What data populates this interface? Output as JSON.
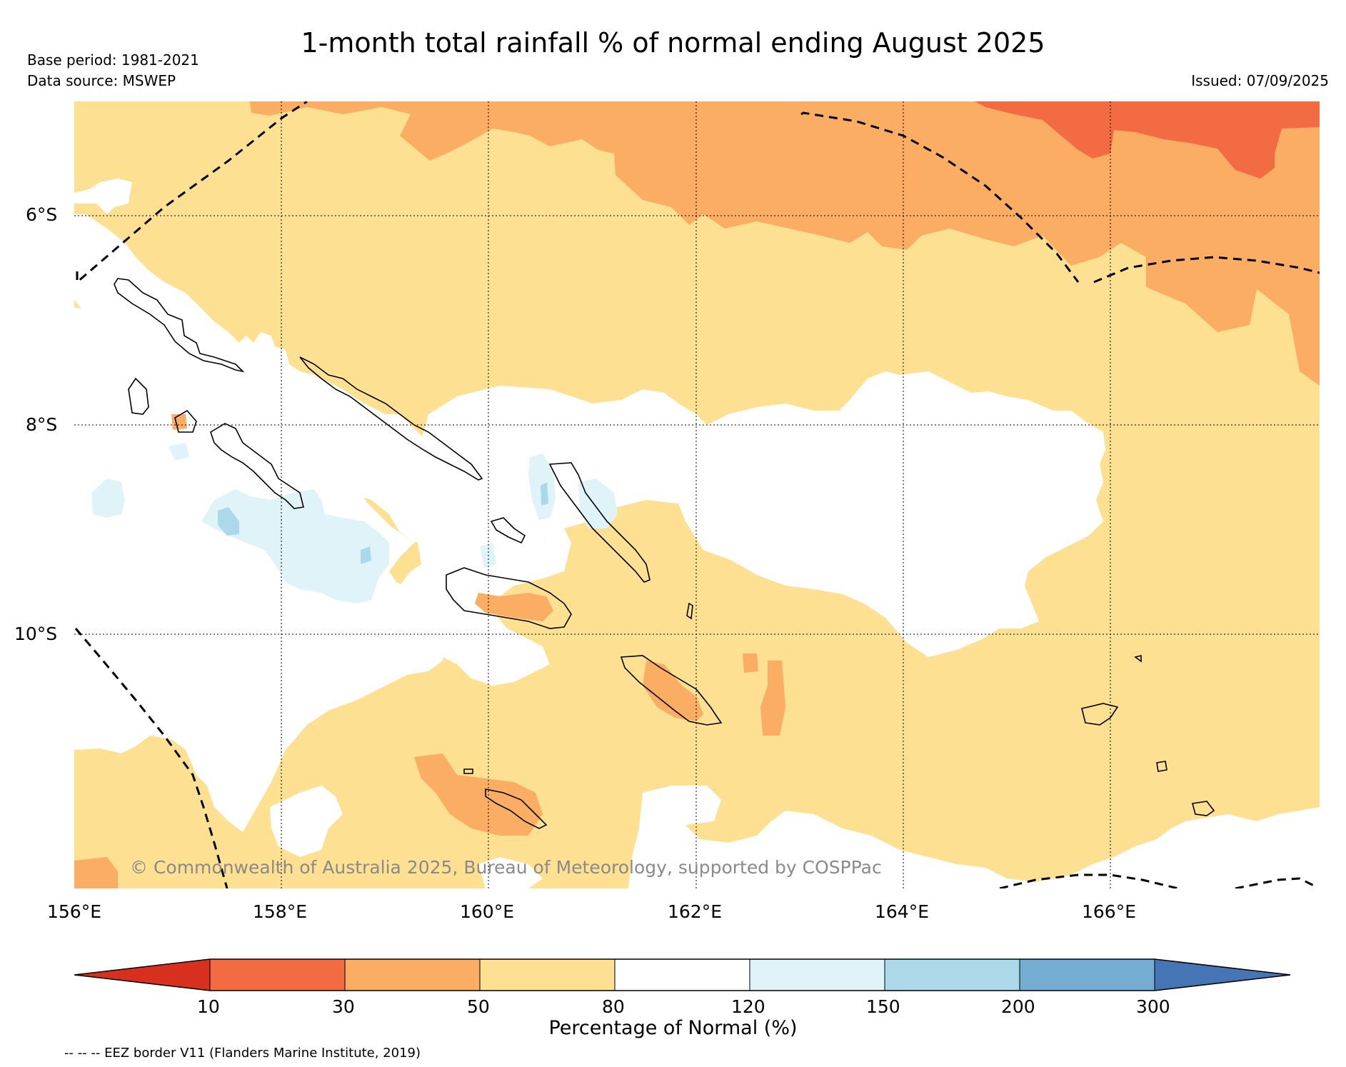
{
  "title": "1-month total rainfall % of normal ending August 2025",
  "base_period": "Base period: 1981-2021",
  "data_source": "Data source: MSWEP",
  "issued": "Issued: 07/09/2025",
  "lat_labels": [
    "6°S",
    "8°S",
    "10°S"
  ],
  "lon_labels": [
    "156°E",
    "158°E",
    "160°E",
    "162°E",
    "164°E",
    "166°E"
  ],
  "copyright": "© Commonwealth of Australia 2025, Bureau of Meteorology, supported by COSPPac",
  "colorbar": {
    "title": "Percentage of Normal (%)",
    "ticks": [
      "10",
      "30",
      "50",
      "80",
      "120",
      "150",
      "200",
      "300"
    ],
    "colors": [
      "#d7301f",
      "#f26b43",
      "#fbad63",
      "#fde092",
      "#ffffff",
      "#e0f3f8",
      "#abd9e9",
      "#74add1",
      "#4575b4"
    ]
  },
  "legend_eez": "-- -- -- EEZ border V11 (Flanders Marine Institute, 2019)",
  "palette": {
    "lt10": "#d7301f",
    "p10_30": "#f26b43",
    "p30_50": "#fbad63",
    "p50_80": "#fde092",
    "p80_120": "#ffffff",
    "p120_150": "#e0f3f8",
    "p150_200": "#abd9e9"
  }
}
